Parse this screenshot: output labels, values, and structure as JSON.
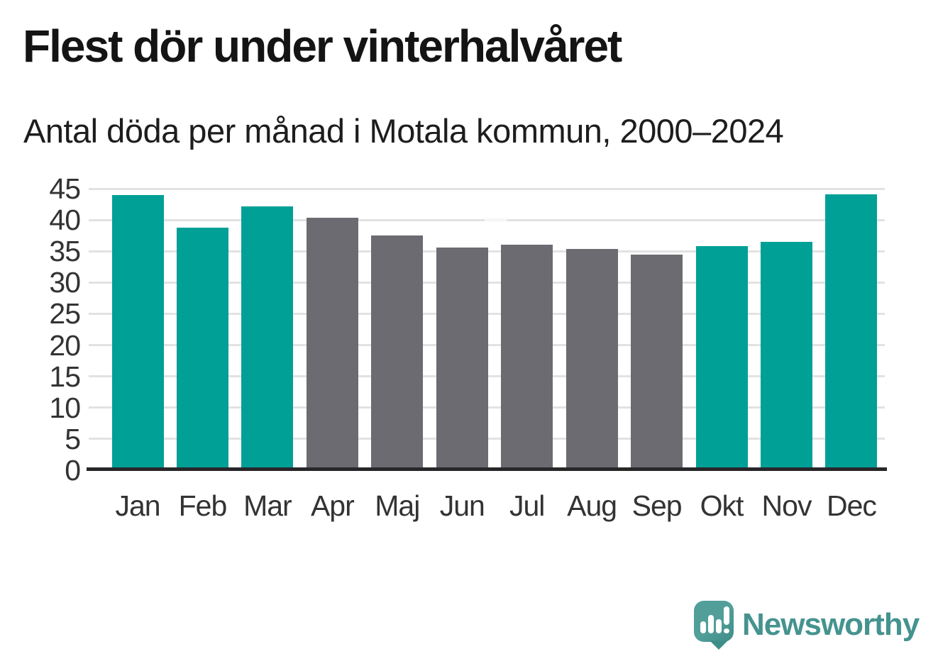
{
  "header": {
    "title": "Flest dör under vinterhalvåret",
    "subtitle": "Antal döda per månad i Motala kommun, 2000–2024"
  },
  "chart_data": {
    "type": "bar",
    "title": "Flest dör under vinterhalvåret",
    "subtitle": "Antal döda per månad i Motala kommun, 2000–2024",
    "categories": [
      "Jan",
      "Feb",
      "Mar",
      "Apr",
      "Maj",
      "Jun",
      "Jul",
      "Aug",
      "Sep",
      "Okt",
      "Nov",
      "Dec"
    ],
    "values": [
      44.0,
      38.8,
      42.2,
      40.4,
      37.5,
      35.6,
      36.0,
      35.4,
      34.5,
      35.8,
      36.5,
      44.1
    ],
    "highlighted_categories": [
      "Jan",
      "Feb",
      "Mar",
      "Okt",
      "Nov",
      "Dec"
    ],
    "highlight_color": "#00a096",
    "default_color": "#6c6b71",
    "xlabel": "",
    "ylabel": "",
    "ylim": [
      0,
      45
    ],
    "yticks": [
      0,
      5,
      10,
      15,
      20,
      25,
      30,
      35,
      40,
      45
    ],
    "grid": true,
    "legend": "none"
  },
  "branding": {
    "name": "Newsworthy",
    "icon": "newsworthy-speech-bubble-chart-icon",
    "text_color": "#45938e",
    "bubble_color": "#529f9a",
    "bubble_shade_color": "#3f8d88"
  }
}
